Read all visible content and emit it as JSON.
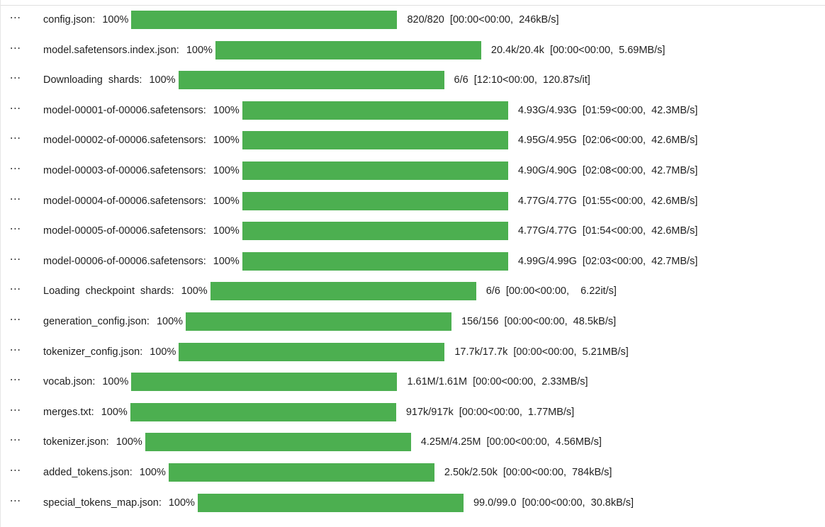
{
  "colors": {
    "bar_fill": "#4caf50",
    "bar_track": "#e8e8e8",
    "text": "#1f1f1f"
  },
  "icons": {
    "row_menu": "ellipsis-icon"
  },
  "more_glyph": "⋯",
  "rows": [
    {
      "desc": "config.json:",
      "pct": "100%",
      "progress": 1.0,
      "stats": "820/820  [00:00<00:00,  246kB/s]"
    },
    {
      "desc": "model.safetensors.index.json:",
      "pct": "100%",
      "progress": 1.0,
      "stats": "20.4k/20.4k  [00:00<00:00,  5.69MB/s]"
    },
    {
      "desc": "Downloading  shards:",
      "pct": "100%",
      "progress": 1.0,
      "stats": "6/6  [12:10<00:00,  120.87s/it]"
    },
    {
      "desc": "model-00001-of-00006.safetensors:",
      "pct": "100%",
      "progress": 1.0,
      "stats": "4.93G/4.93G  [01:59<00:00,  42.3MB/s]"
    },
    {
      "desc": "model-00002-of-00006.safetensors:",
      "pct": "100%",
      "progress": 1.0,
      "stats": "4.95G/4.95G  [02:06<00:00,  42.6MB/s]"
    },
    {
      "desc": "model-00003-of-00006.safetensors:",
      "pct": "100%",
      "progress": 1.0,
      "stats": "4.90G/4.90G  [02:08<00:00,  42.7MB/s]"
    },
    {
      "desc": "model-00004-of-00006.safetensors:",
      "pct": "100%",
      "progress": 1.0,
      "stats": "4.77G/4.77G  [01:55<00:00,  42.6MB/s]"
    },
    {
      "desc": "model-00005-of-00006.safetensors:",
      "pct": "100%",
      "progress": 1.0,
      "stats": "4.77G/4.77G  [01:54<00:00,  42.6MB/s]"
    },
    {
      "desc": "model-00006-of-00006.safetensors:",
      "pct": "100%",
      "progress": 1.0,
      "stats": "4.99G/4.99G  [02:03<00:00,  42.7MB/s]"
    },
    {
      "desc": "Loading  checkpoint  shards:",
      "pct": "100%",
      "progress": 1.0,
      "stats": "6/6  [00:00<00:00,    6.22it/s]"
    },
    {
      "desc": "generation_config.json:",
      "pct": "100%",
      "progress": 1.0,
      "stats": "156/156  [00:00<00:00,  48.5kB/s]"
    },
    {
      "desc": "tokenizer_config.json:",
      "pct": "100%",
      "progress": 1.0,
      "stats": "17.7k/17.7k  [00:00<00:00,  5.21MB/s]"
    },
    {
      "desc": "vocab.json:",
      "pct": "100%",
      "progress": 1.0,
      "stats": "1.61M/1.61M  [00:00<00:00,  2.33MB/s]"
    },
    {
      "desc": "merges.txt:",
      "pct": "100%",
      "progress": 1.0,
      "stats": "917k/917k  [00:00<00:00,  1.77MB/s]"
    },
    {
      "desc": "tokenizer.json:",
      "pct": "100%",
      "progress": 1.0,
      "stats": "4.25M/4.25M  [00:00<00:00,  4.56MB/s]"
    },
    {
      "desc": "added_tokens.json:",
      "pct": "100%",
      "progress": 1.0,
      "stats": "2.50k/2.50k  [00:00<00:00,  784kB/s]"
    },
    {
      "desc": "special_tokens_map.json:",
      "pct": "100%",
      "progress": 1.0,
      "stats": "99.0/99.0  [00:00<00:00,  30.8kB/s]"
    }
  ]
}
